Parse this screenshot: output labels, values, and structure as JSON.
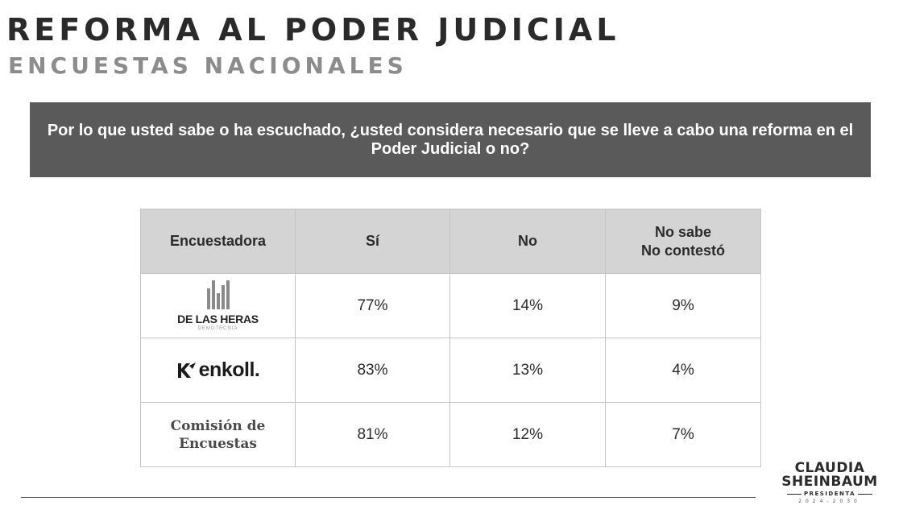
{
  "header": {
    "title": "REFORMA AL PODER JUDICIAL",
    "subtitle": "ENCUESTAS NACIONALES"
  },
  "question": {
    "text": "Por lo que usted sabe o ha escuchado, ¿usted considera necesario que se lleve a cabo una reforma en el Poder Judicial o no?"
  },
  "table": {
    "headers": {
      "pollster": "Encuestadora",
      "yes": "Sí",
      "no": "No",
      "unknown_line1": "No sabe",
      "unknown_line2": "No contestó"
    },
    "rows": [
      {
        "pollster_name": "DE LAS HERAS",
        "pollster_tagline": "DEMOTECNIA",
        "logo_icon": "de-las-heras-logo",
        "yes": "77%",
        "no": "14%",
        "unknown": "9%"
      },
      {
        "pollster_name": "enkoll.",
        "logo_icon": "enkoll-logo",
        "yes": "83%",
        "no": "13%",
        "unknown": "4%"
      },
      {
        "pollster_name_line1": "Comisión de",
        "pollster_name_line2": "Encuestas",
        "yes": "81%",
        "no": "12%",
        "unknown": "7%"
      }
    ]
  },
  "footer": {
    "brand_line1": "CLAUDIA",
    "brand_line2": "SHEINBAUM",
    "brand_line3": "PRESIDENTA",
    "brand_years": "2024-2030"
  },
  "colors": {
    "question_bg": "#5a5a5a",
    "header_bg": "#d4d4d4",
    "subtitle": "#8c8c8c"
  }
}
